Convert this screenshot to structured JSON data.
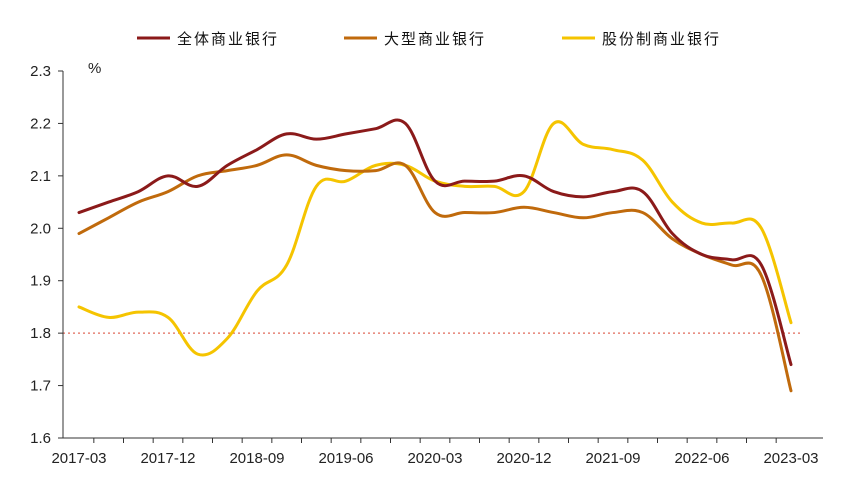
{
  "chart_data": {
    "type": "line",
    "title": "",
    "xlabel": "",
    "ylabel": "%",
    "ylim": [
      1.6,
      2.3
    ],
    "yticks": [
      "1.6",
      "1.7",
      "1.8",
      "1.9",
      "2.0",
      "2.1",
      "2.2",
      "2.3"
    ],
    "xtick_labels": [
      "2017-03",
      "2017-12",
      "2018-09",
      "2019-06",
      "2020-03",
      "2020-12",
      "2021-09",
      "2022-06",
      "2023-03"
    ],
    "reference_line": {
      "y": 1.8,
      "color": "#e06a5a",
      "style": "dotted"
    },
    "legend_position": "top",
    "x": [
      "2017-03",
      "2017-06",
      "2017-09",
      "2017-12",
      "2018-03",
      "2018-06",
      "2018-09",
      "2018-12",
      "2019-03",
      "2019-06",
      "2019-09",
      "2019-12",
      "2020-03",
      "2020-06",
      "2020-09",
      "2020-12",
      "2021-03",
      "2021-06",
      "2021-09",
      "2021-12",
      "2022-03",
      "2022-06",
      "2022-09",
      "2022-12",
      "2023-03"
    ],
    "series": [
      {
        "name": "全体商业银行",
        "color": "#8b1a1a",
        "values": [
          2.03,
          2.05,
          2.07,
          2.1,
          2.08,
          2.12,
          2.15,
          2.18,
          2.17,
          2.18,
          2.19,
          2.2,
          2.09,
          2.09,
          2.09,
          2.1,
          2.07,
          2.06,
          2.07,
          2.07,
          1.99,
          1.95,
          1.94,
          1.93,
          1.74
        ]
      },
      {
        "name": "大型商业银行",
        "color": "#c06a0c",
        "values": [
          1.99,
          2.02,
          2.05,
          2.07,
          2.1,
          2.11,
          2.12,
          2.14,
          2.12,
          2.11,
          2.11,
          2.12,
          2.03,
          2.03,
          2.03,
          2.04,
          2.03,
          2.02,
          2.03,
          2.03,
          1.98,
          1.95,
          1.93,
          1.91,
          1.69
        ]
      },
      {
        "name": "股份制商业银行",
        "color": "#f5c400",
        "values": [
          1.85,
          1.83,
          1.84,
          1.83,
          1.76,
          1.79,
          1.88,
          1.93,
          2.08,
          2.09,
          2.12,
          2.12,
          2.09,
          2.08,
          2.08,
          2.07,
          2.2,
          2.16,
          2.15,
          2.13,
          2.05,
          2.01,
          2.01,
          2.0,
          1.82
        ]
      }
    ]
  }
}
